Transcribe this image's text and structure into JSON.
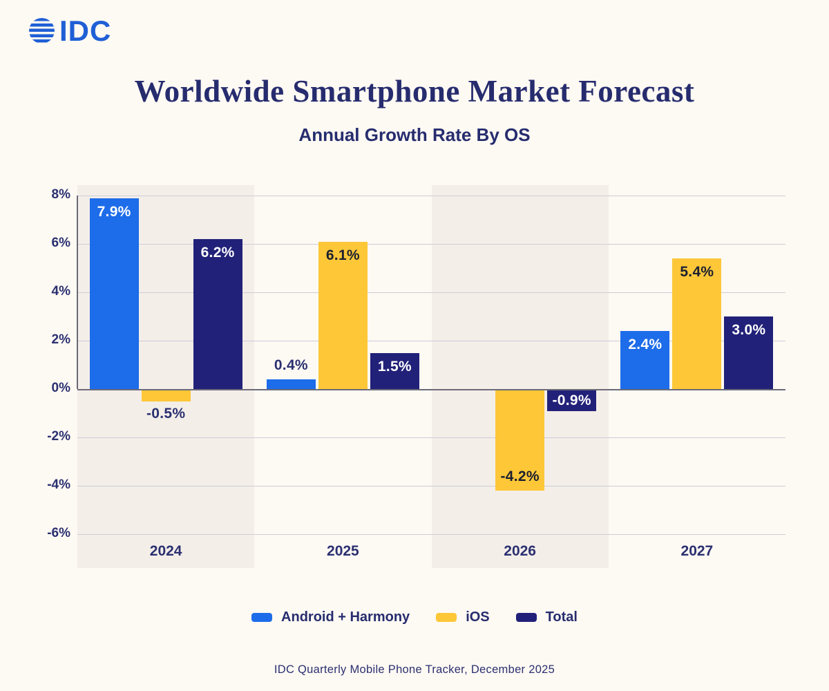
{
  "header": {
    "logo_text": "IDC",
    "title": "Worldwide Smartphone Market Forecast",
    "subtitle": "Annual Growth Rate By OS"
  },
  "footer": {
    "source": "IDC Quarterly Mobile Phone Tracker, December 2025"
  },
  "colors": {
    "android": "#1d6ce9",
    "ios": "#fdc738",
    "total": "#212179",
    "background": "#fdf9f3",
    "band": "#f4eee9",
    "gridline": "#cdccd8",
    "zero_line": "#6a6a78",
    "text_navy": "#2b3070",
    "title_navy": "#262c6e",
    "logo_blue": "#1f5fd6",
    "label_on_yellow": "#1b2030",
    "label_light": "#ffffff"
  },
  "chart_data": {
    "type": "bar",
    "title": "Worldwide Smartphone Market Forecast",
    "subtitle": "Annual Growth Rate By OS",
    "categories": [
      "2024",
      "2025",
      "2026",
      "2027"
    ],
    "series": [
      {
        "name": "Android + Harmony",
        "color_key": "android",
        "values": [
          7.9,
          0.4,
          null,
          2.4
        ],
        "labels": [
          "7.9%",
          "0.4%",
          "",
          "2.4%"
        ],
        "label_styles": [
          "inside-light",
          "outside",
          "none",
          "inside-light"
        ]
      },
      {
        "name": "iOS",
        "color_key": "ios",
        "values": [
          -0.5,
          6.1,
          -4.2,
          5.4
        ],
        "labels": [
          "-0.5%",
          "6.1%",
          "-4.2%",
          "5.4%"
        ],
        "label_styles": [
          "outside",
          "inside-dark",
          "inside-dark",
          "inside-dark"
        ]
      },
      {
        "name": "Total",
        "color_key": "total",
        "values": [
          6.2,
          1.5,
          -0.9,
          3.0
        ],
        "labels": [
          "6.2%",
          "1.5%",
          "-0.9%",
          "3.0%"
        ],
        "label_styles": [
          "inside-light",
          "inside-light",
          "inside-light",
          "inside-light"
        ]
      }
    ],
    "y_ticks": [
      {
        "value": 8,
        "label": "8%"
      },
      {
        "value": 6,
        "label": "6%"
      },
      {
        "value": 4,
        "label": "4%"
      },
      {
        "value": 2,
        "label": "2%"
      },
      {
        "value": 0,
        "label": "0%"
      },
      {
        "value": -2,
        "label": "-2%"
      },
      {
        "value": -4,
        "label": "-4%"
      },
      {
        "value": -6,
        "label": "-6%"
      }
    ],
    "ylim": [
      -7,
      8.4
    ],
    "grid": true,
    "legend_position": "bottom",
    "highlight_band_indices": [
      0,
      2
    ]
  }
}
